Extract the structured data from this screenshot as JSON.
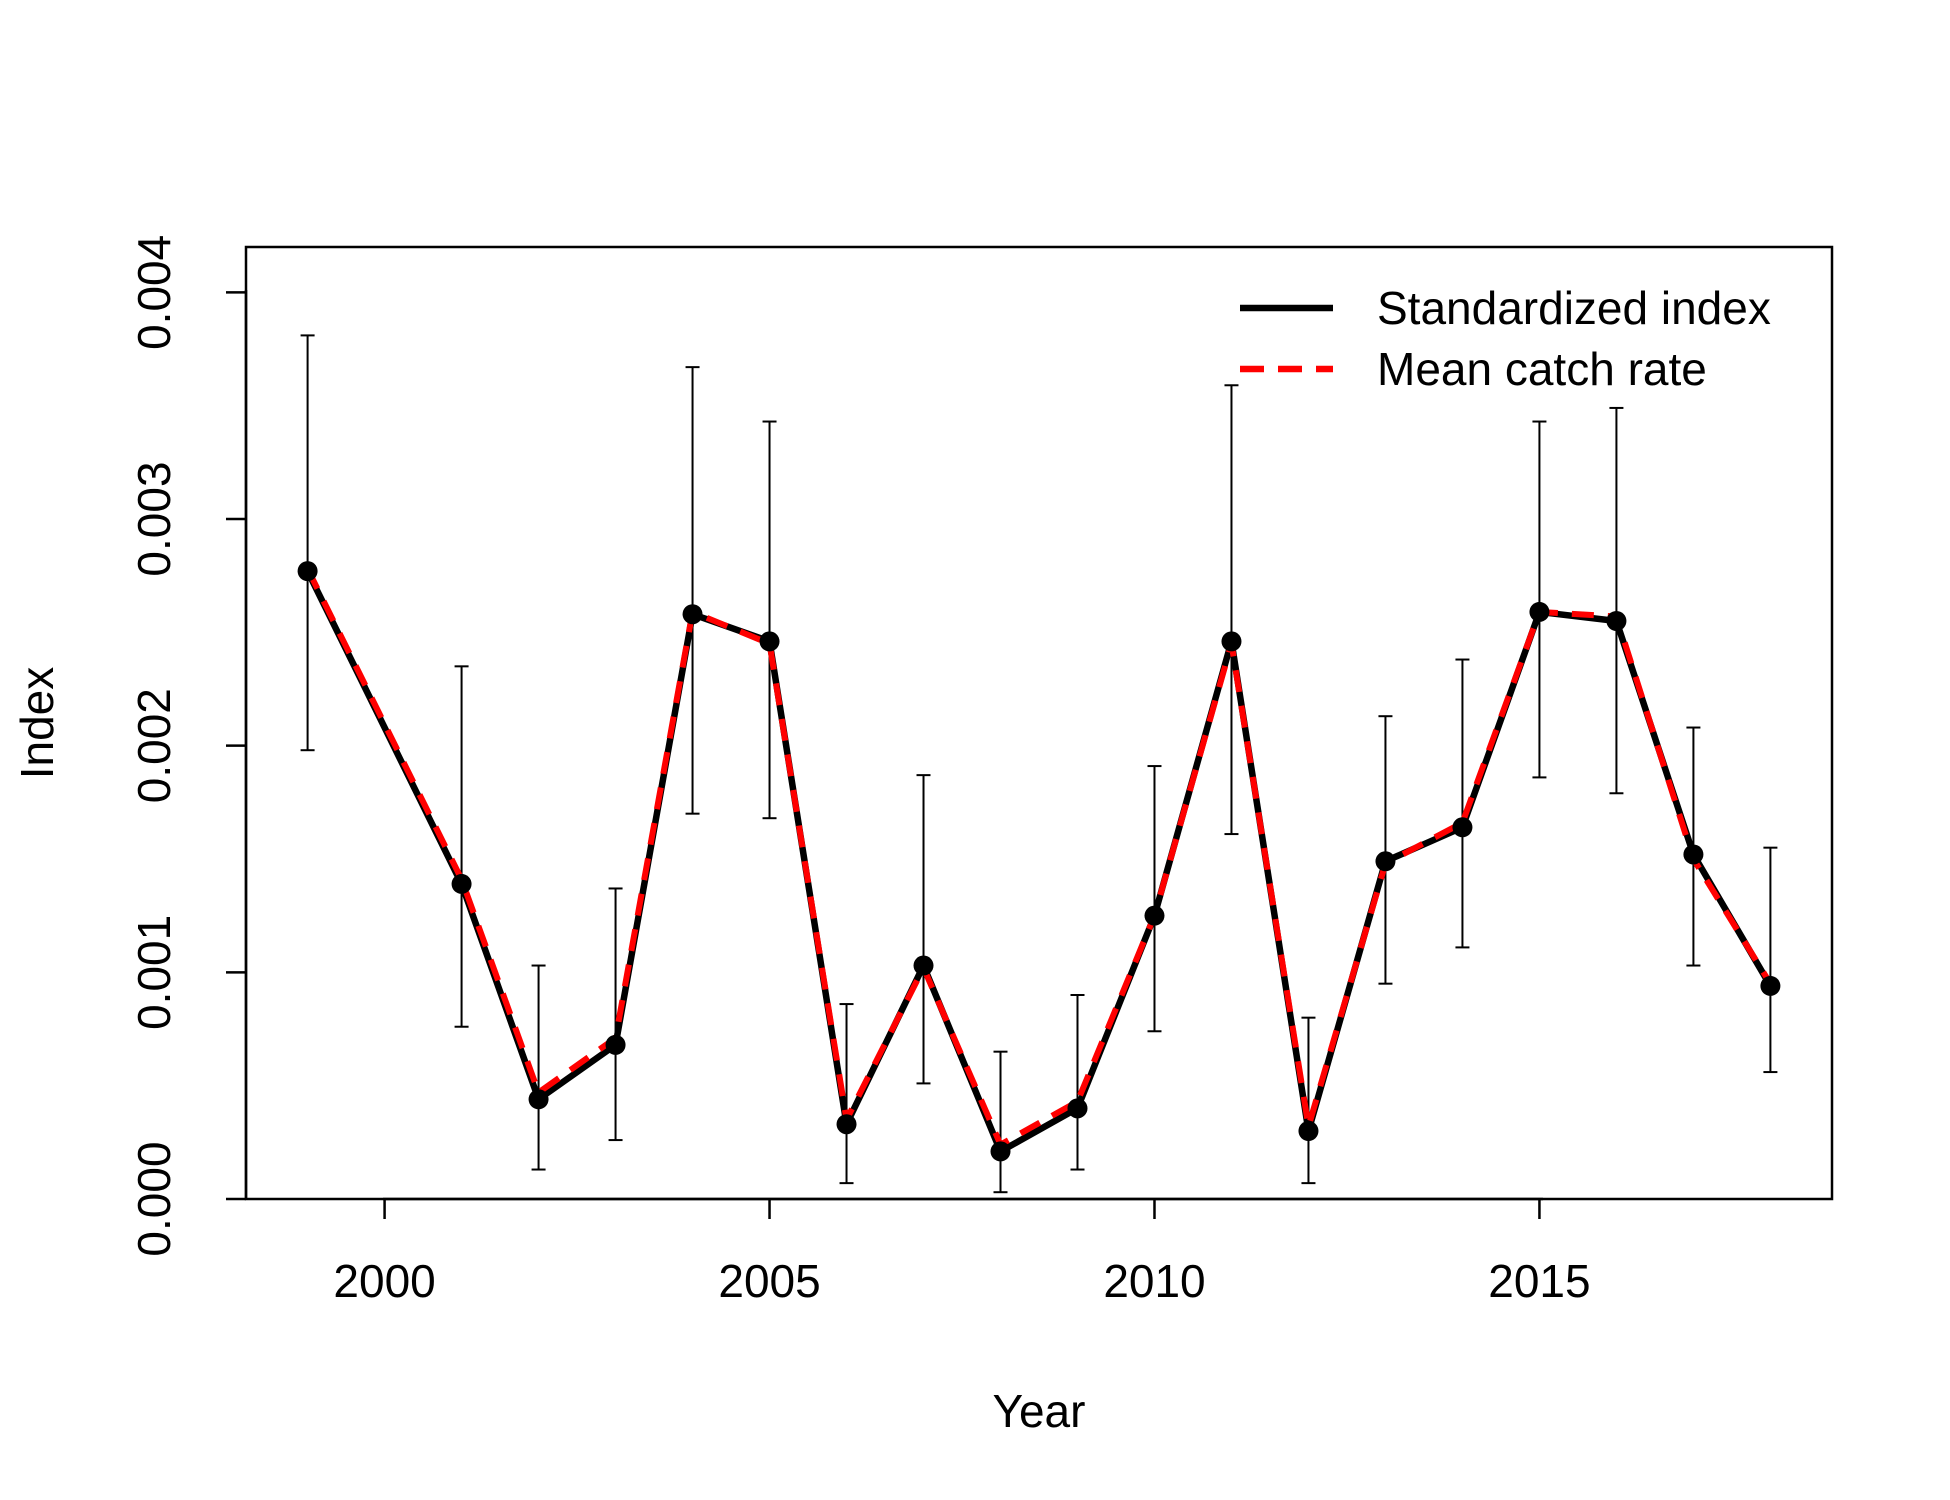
{
  "chart_data": {
    "type": "line",
    "xlabel": "Year",
    "ylabel": "Index",
    "xlim": [
      1998.2,
      2018.8
    ],
    "ylim": [
      0,
      0.0042
    ],
    "x_ticks": [
      2000,
      2005,
      2010,
      2015
    ],
    "x_tick_labels": [
      "2000",
      "2005",
      "2010",
      "2015"
    ],
    "y_ticks": [
      0,
      0.001,
      0.002,
      0.003,
      0.004
    ],
    "y_tick_labels": [
      "0.000",
      "0.001",
      "0.002",
      "0.003",
      "0.004"
    ],
    "grid": false,
    "legend_position": "top-right",
    "series": [
      {
        "name": "Standardized index",
        "color": "#000000",
        "line_style": "solid",
        "markers": true,
        "error_bars": true,
        "x": [
          1999,
          2001,
          2002,
          2003,
          2004,
          2005,
          2006,
          2007,
          2008,
          2009,
          2010,
          2011,
          2012,
          2013,
          2014,
          2015,
          2016,
          2017,
          2018
        ],
        "y": [
          0.00277,
          0.00139,
          0.00044,
          0.00068,
          0.00258,
          0.00246,
          0.00033,
          0.00103,
          0.00021,
          0.0004,
          0.00125,
          0.00246,
          0.0003,
          0.00149,
          0.00164,
          0.00259,
          0.00255,
          0.00152,
          0.00094
        ],
        "lower": [
          0.00198,
          0.00076,
          0.00013,
          0.00026,
          0.0017,
          0.00168,
          7e-05,
          0.00051,
          3e-05,
          0.00013,
          0.00074,
          0.00161,
          7e-05,
          0.00095,
          0.00111,
          0.00186,
          0.00179,
          0.00103,
          0.00056
        ],
        "upper": [
          0.00381,
          0.00235,
          0.00103,
          0.00137,
          0.00367,
          0.00343,
          0.00086,
          0.00187,
          0.00065,
          0.0009,
          0.00191,
          0.00359,
          0.0008,
          0.00213,
          0.00238,
          0.00343,
          0.00349,
          0.00208,
          0.00155
        ]
      },
      {
        "name": "Mean catch rate",
        "color": "#ff0000",
        "line_style": "dashed",
        "markers": false,
        "x": [
          1999,
          2001,
          2002,
          2003,
          2004,
          2005,
          2006,
          2007,
          2008,
          2009,
          2010,
          2011,
          2012,
          2013,
          2014,
          2015,
          2016,
          2017,
          2018
        ],
        "y": [
          0.00278,
          0.00141,
          0.00047,
          0.00071,
          0.00259,
          0.00245,
          0.00035,
          0.00102,
          0.00024,
          0.00043,
          0.00125,
          0.00245,
          0.00032,
          0.00148,
          0.00166,
          0.00259,
          0.00257,
          0.0015,
          0.00095
        ]
      }
    ]
  }
}
